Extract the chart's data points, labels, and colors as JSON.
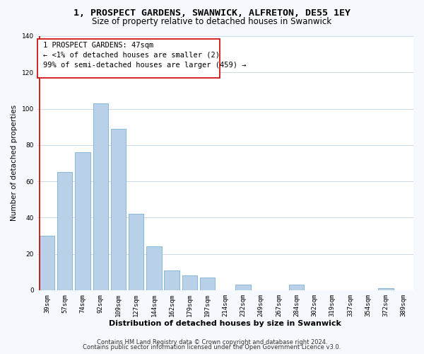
{
  "title": "1, PROSPECT GARDENS, SWANWICK, ALFRETON, DE55 1EY",
  "subtitle": "Size of property relative to detached houses in Swanwick",
  "xlabel": "Distribution of detached houses by size in Swanwick",
  "ylabel": "Number of detached properties",
  "categories": [
    "39sqm",
    "57sqm",
    "74sqm",
    "92sqm",
    "109sqm",
    "127sqm",
    "144sqm",
    "162sqm",
    "179sqm",
    "197sqm",
    "214sqm",
    "232sqm",
    "249sqm",
    "267sqm",
    "284sqm",
    "302sqm",
    "319sqm",
    "337sqm",
    "354sqm",
    "372sqm",
    "389sqm"
  ],
  "values": [
    30,
    65,
    76,
    103,
    89,
    42,
    24,
    11,
    8,
    7,
    0,
    3,
    0,
    0,
    3,
    0,
    0,
    0,
    0,
    1,
    0
  ],
  "bar_color": "#b8d0e8",
  "bar_edge_color": "#7aafd4",
  "annotation_box_text_line1": "1 PROSPECT GARDENS: 47sqm",
  "annotation_box_text_line2": "← <1% of detached houses are smaller (2)",
  "annotation_box_text_line3": "99% of semi-detached houses are larger (459) →",
  "ylim": [
    0,
    140
  ],
  "yticks": [
    0,
    20,
    40,
    60,
    80,
    100,
    120,
    140
  ],
  "footer_line1": "Contains HM Land Registry data © Crown copyright and database right 2024.",
  "footer_line2": "Contains public sector information licensed under the Open Government Licence v3.0.",
  "title_fontsize": 9.5,
  "subtitle_fontsize": 8.5,
  "xlabel_fontsize": 8,
  "ylabel_fontsize": 7.5,
  "tick_fontsize": 6.5,
  "footer_fontsize": 6,
  "annotation_fontsize": 7.5,
  "bg_color": "#f5f8fc",
  "plot_bg_color": "#ffffff",
  "grid_color": "#ccd9e8",
  "red_line_color": "#cc0000"
}
